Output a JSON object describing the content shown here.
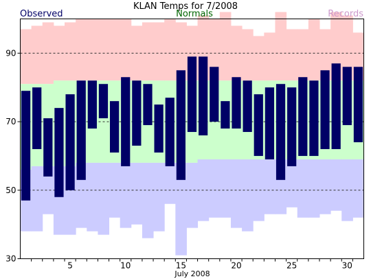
{
  "chart_data": {
    "type": "bar",
    "title": "KLAN Temps for 7/2008",
    "legend": {
      "observed": "Observed",
      "normals": "Normals",
      "records": "Records"
    },
    "xlabel": "July 2008",
    "ylabel": "",
    "xlim": [
      0,
      31
    ],
    "ylim": [
      30,
      100
    ],
    "x_ticks": [
      5,
      10,
      15,
      20,
      25,
      30
    ],
    "y_ticks": [
      30,
      50,
      70,
      90
    ],
    "gridlines": [
      50,
      70,
      90
    ],
    "colors": {
      "observed": "#000066",
      "normals": "#ccffcc",
      "records_high": "#ffcccc",
      "records_low": "#ccccff",
      "observed_legend": "#000066",
      "normals_legend": "#006600",
      "records_legend": "#cc99cc"
    },
    "days": [
      1,
      2,
      3,
      4,
      5,
      6,
      7,
      8,
      9,
      10,
      11,
      12,
      13,
      14,
      15,
      16,
      17,
      18,
      19,
      20,
      21,
      22,
      23,
      24,
      25,
      26,
      27,
      28,
      29,
      30,
      31
    ],
    "series": [
      {
        "name": "Observed",
        "high": [
          79,
          80,
          71,
          74,
          78,
          82,
          82,
          81,
          76,
          83,
          82,
          81,
          75,
          77,
          85,
          89,
          89,
          86,
          76,
          83,
          82,
          78,
          80,
          81,
          80,
          83,
          82,
          85,
          87,
          86,
          86
        ],
        "low": [
          47,
          62,
          54,
          48,
          50,
          53,
          68,
          71,
          61,
          57,
          63,
          69,
          61,
          57,
          53,
          67,
          66,
          70,
          68,
          68,
          67,
          60,
          59,
          53,
          57,
          60,
          60,
          62,
          62,
          69,
          64
        ]
      },
      {
        "name": "Normals",
        "high": [
          81,
          81,
          81,
          82,
          82,
          82,
          82,
          82,
          82,
          82,
          82,
          82,
          82,
          82,
          82,
          82,
          82,
          82,
          82,
          82,
          82,
          82,
          82,
          82,
          82,
          82,
          82,
          82,
          82,
          82,
          82
        ],
        "low": [
          56,
          57,
          57,
          57,
          57,
          58,
          58,
          58,
          58,
          58,
          58,
          58,
          58,
          58,
          58,
          58,
          59,
          59,
          59,
          59,
          59,
          59,
          59,
          59,
          59,
          59,
          59,
          59,
          59,
          59,
          59
        ]
      },
      {
        "name": "Records",
        "high": [
          97,
          98,
          99,
          98,
          99,
          100,
          100,
          100,
          100,
          100,
          98,
          99,
          99,
          100,
          99,
          98,
          101,
          100,
          102,
          98,
          97,
          95,
          96,
          102,
          97,
          97,
          100,
          97,
          102,
          101,
          96
        ],
        "low": [
          38,
          38,
          43,
          37,
          37,
          39,
          38,
          37,
          42,
          39,
          40,
          36,
          38,
          46,
          31,
          39,
          41,
          42,
          42,
          39,
          38,
          41,
          43,
          43,
          45,
          42,
          42,
          43,
          44,
          41,
          42
        ]
      }
    ]
  }
}
